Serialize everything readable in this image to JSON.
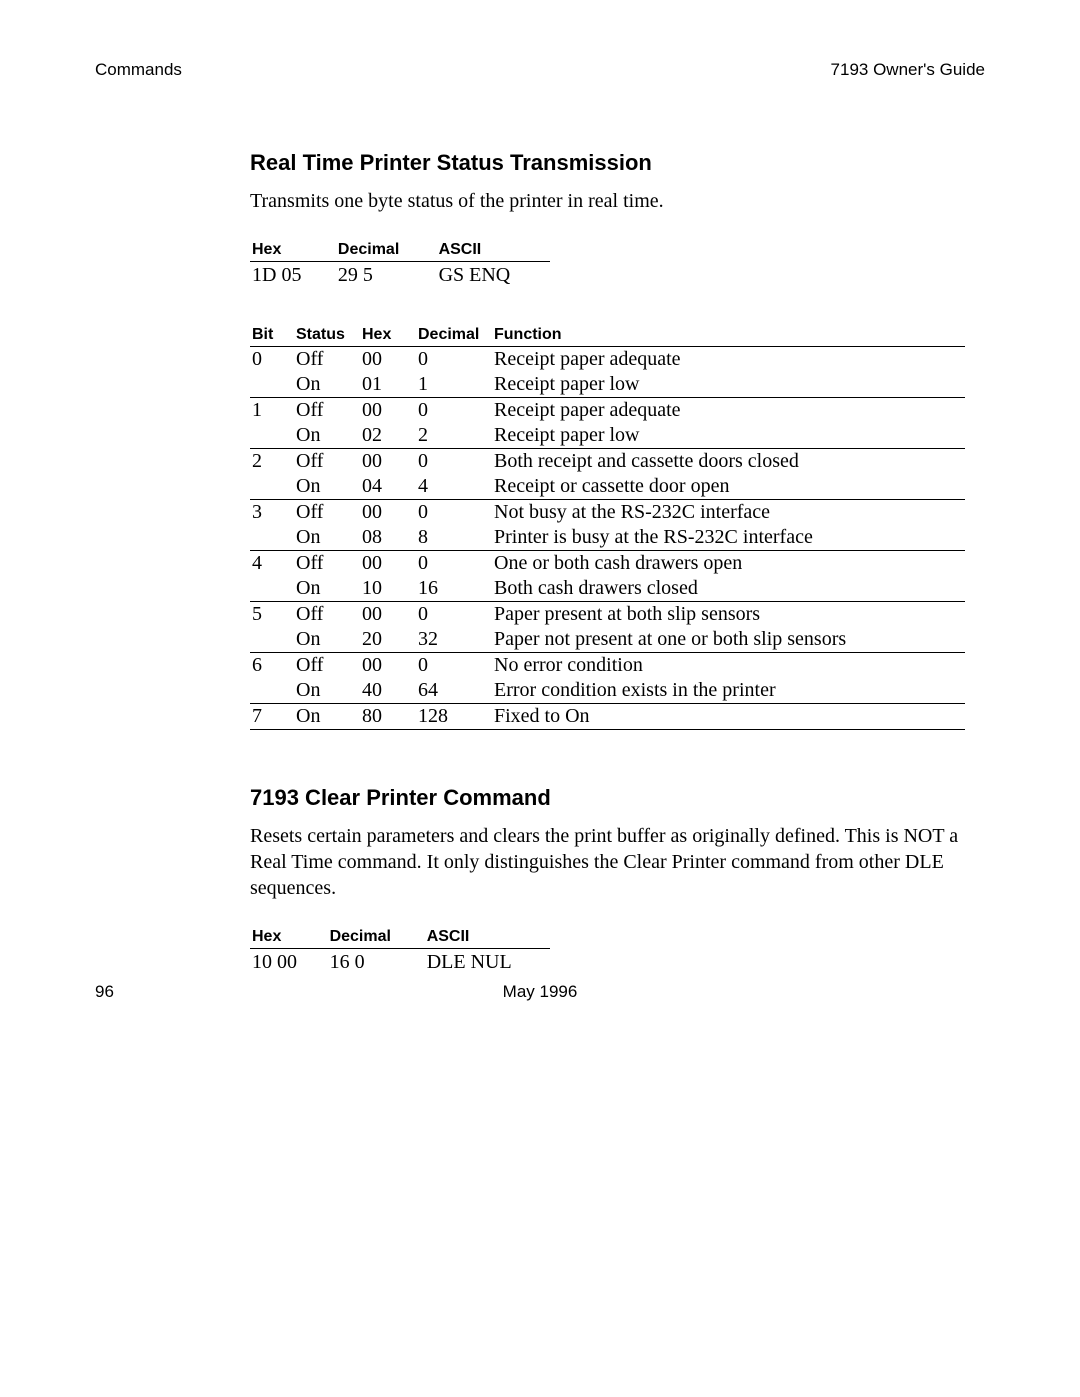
{
  "header": {
    "left": "Commands",
    "right": "7193 Owner's Guide"
  },
  "section1": {
    "title": "Real Time Printer Status Transmission",
    "desc": "Transmits one byte status of the printer in real time.",
    "cmd": {
      "headers": [
        "Hex",
        "Decimal",
        "ASCII"
      ],
      "row": [
        "1D 05",
        "29 5",
        "GS ENQ"
      ]
    },
    "bits": {
      "headers": [
        "Bit",
        "Status",
        "Hex",
        "Decimal",
        "Function"
      ],
      "rows": [
        {
          "bit": "0",
          "status": "Off",
          "hex": "00",
          "dec": "0",
          "func": "Receipt paper adequate",
          "sep": false
        },
        {
          "bit": "",
          "status": "On",
          "hex": "01",
          "dec": "1",
          "func": "Receipt paper low",
          "sep": true
        },
        {
          "bit": "1",
          "status": "Off",
          "hex": "00",
          "dec": "0",
          "func": "Receipt paper adequate",
          "sep": false
        },
        {
          "bit": "",
          "status": "On",
          "hex": "02",
          "dec": "2",
          "func": "Receipt paper low",
          "sep": true
        },
        {
          "bit": "2",
          "status": "Off",
          "hex": "00",
          "dec": "0",
          "func": "Both receipt and cassette doors closed",
          "sep": false
        },
        {
          "bit": "",
          "status": "On",
          "hex": "04",
          "dec": "4",
          "func": "Receipt or cassette door open",
          "sep": true
        },
        {
          "bit": "3",
          "status": "Off",
          "hex": "00",
          "dec": "0",
          "func": "Not busy at the RS-232C interface",
          "sep": false
        },
        {
          "bit": "",
          "status": "On",
          "hex": "08",
          "dec": "8",
          "func": "Printer is busy at the RS-232C interface",
          "sep": true
        },
        {
          "bit": "4",
          "status": "Off",
          "hex": "00",
          "dec": "0",
          "func": "One or both cash drawers open",
          "sep": false
        },
        {
          "bit": "",
          "status": "On",
          "hex": "10",
          "dec": "16",
          "func": "Both cash drawers closed",
          "sep": true
        },
        {
          "bit": "5",
          "status": "Off",
          "hex": "00",
          "dec": "0",
          "func": "Paper present at both slip sensors",
          "sep": false
        },
        {
          "bit": "",
          "status": "On",
          "hex": "20",
          "dec": "32",
          "func": "Paper not present at one or both slip sensors",
          "sep": true
        },
        {
          "bit": "6",
          "status": "Off",
          "hex": "00",
          "dec": "0",
          "func": "No error condition",
          "sep": false
        },
        {
          "bit": "",
          "status": "On",
          "hex": "40",
          "dec": "64",
          "func": "Error condition exists in the printer",
          "sep": true
        },
        {
          "bit": "7",
          "status": "On",
          "hex": "80",
          "dec": "128",
          "func": "Fixed to On",
          "sep": true
        }
      ]
    }
  },
  "section2": {
    "title": "7193 Clear Printer Command",
    "desc": "Resets certain parameters and clears the print buffer as originally defined. This is NOT a Real Time command. It only distinguishes the Clear Printer command from other DLE sequences.",
    "cmd": {
      "headers": [
        "Hex",
        "Decimal",
        "ASCII"
      ],
      "row": [
        "10 00",
        "16 0",
        "DLE NUL"
      ]
    }
  },
  "footer": {
    "page": "96",
    "date": "May 1996"
  }
}
